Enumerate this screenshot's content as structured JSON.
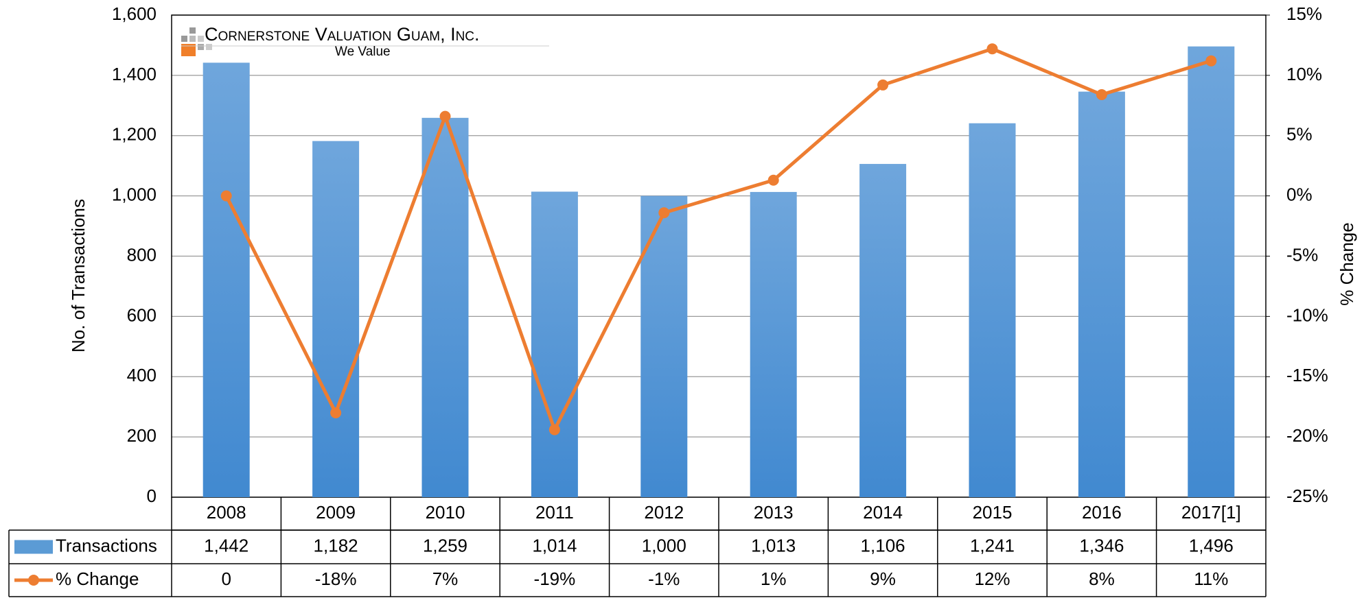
{
  "chart_data": {
    "type": "bar-line",
    "logo": {
      "name": "Cornerstone Valuation Guam, Inc.",
      "tagline": "We Value"
    },
    "y_label": "No. of Transactions",
    "y2_label": "% Change",
    "categories": [
      "2008",
      "2009",
      "2010",
      "2011",
      "2012",
      "2013",
      "2014",
      "2015",
      "2016",
      "2017[1]"
    ],
    "series": [
      {
        "name": "Transactions",
        "type": "bar",
        "color": "#5b9bd5",
        "values": [
          1442,
          1182,
          1259,
          1014,
          1000,
          1013,
          1106,
          1241,
          1346,
          1496
        ],
        "value_labels": [
          "1,442",
          "1,182",
          "1,259",
          "1,014",
          "1,000",
          "1,013",
          "1,106",
          "1,241",
          "1,346",
          "1,496"
        ]
      },
      {
        "name": "% Change",
        "type": "line",
        "axis": "y2",
        "color": "#ed7d31",
        "values": [
          0,
          -18,
          6.6,
          -19.4,
          -1.4,
          1.3,
          9.2,
          12.2,
          8.4,
          11.2
        ],
        "value_labels": [
          "0",
          "-18%",
          "7%",
          "-19%",
          "-1%",
          "1%",
          "9%",
          "12%",
          "8%",
          "11%"
        ]
      }
    ],
    "ylim": [
      0,
      1600
    ],
    "yticks": [
      0,
      200,
      400,
      600,
      800,
      {
        "value": 1000,
        "label": "1,000"
      },
      {
        "value": 1200,
        "label": "1,200"
      },
      {
        "value": 1400,
        "label": "1,400"
      },
      {
        "value": 1600,
        "label": "1,600"
      }
    ],
    "y2lim": [
      -25,
      15
    ],
    "y2ticks": [
      {
        "value": -25,
        "label": "-25%"
      },
      {
        "value": -20,
        "label": "-20%"
      },
      {
        "value": -15,
        "label": "-15%"
      },
      {
        "value": -10,
        "label": "-10%"
      },
      {
        "value": -5,
        "label": "-5%"
      },
      {
        "value": 0,
        "label": "0%"
      },
      {
        "value": 5,
        "label": "5%"
      },
      {
        "value": 10,
        "label": "10%"
      },
      {
        "value": 15,
        "label": "15%"
      }
    ],
    "grid": true
  }
}
